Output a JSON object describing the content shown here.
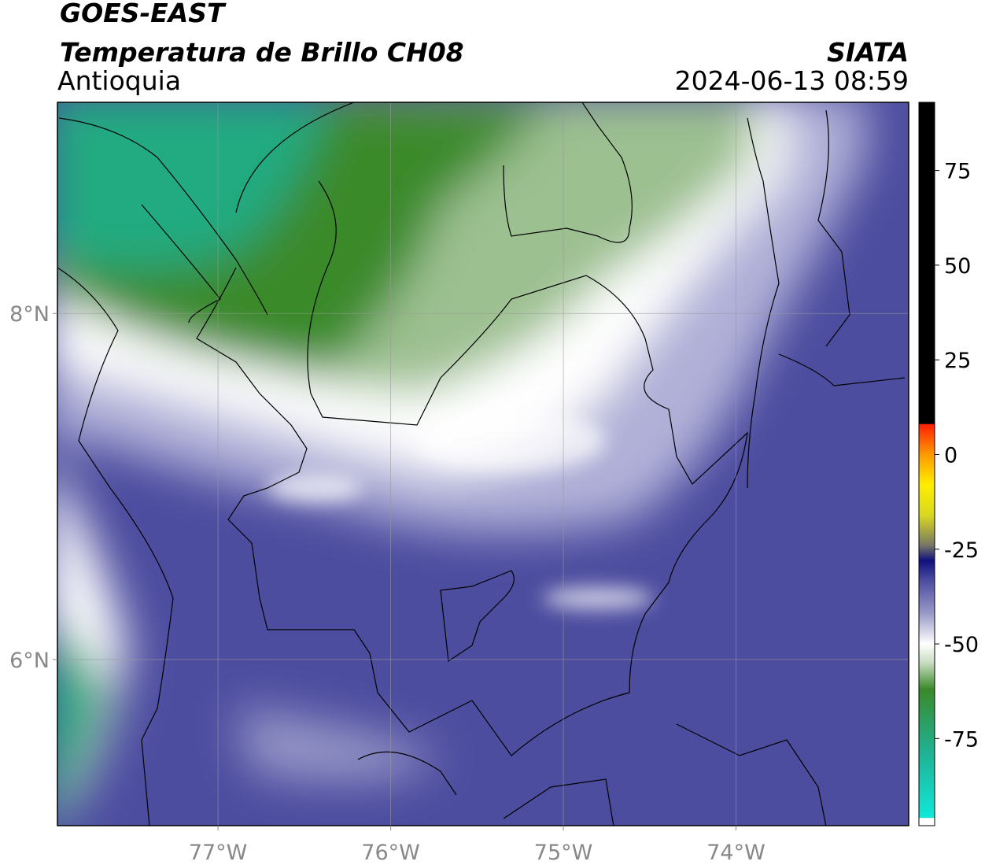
{
  "header": {
    "satellite": "GOES-EAST",
    "product": "Temperatura de Brillo CH08",
    "region": "Antioquia",
    "agency": "SIATA",
    "datetime": "2024-06-13 08:59"
  },
  "map": {
    "lonlim": [
      -77.93,
      -73.0
    ],
    "latlim": [
      5.04,
      9.22
    ],
    "lon_ticks": [
      {
        "value": -77,
        "label": "77°W"
      },
      {
        "value": -76,
        "label": "76°W"
      },
      {
        "value": -75,
        "label": "75°W"
      },
      {
        "value": -74,
        "label": "74°W"
      }
    ],
    "lat_ticks": [
      {
        "value": 8,
        "label": "8°N"
      },
      {
        "value": 6,
        "label": "6°N"
      }
    ],
    "grid": true
  },
  "colorbar": {
    "lim": [
      -98,
      93
    ],
    "ticks": [
      75,
      50,
      25,
      0,
      -25,
      -50,
      -75
    ],
    "colors": [
      {
        "value": -98,
        "color": "#ffffff"
      },
      {
        "value": -96,
        "color": "#ffffff"
      },
      {
        "value": -95.9,
        "color": "#10e8d8"
      },
      {
        "value": -78,
        "color": "#20b090"
      },
      {
        "value": -62,
        "color": "#3a8a2a"
      },
      {
        "value": -55,
        "color": "#c8dcc0"
      },
      {
        "value": -50,
        "color": "#ffffff"
      },
      {
        "value": -42,
        "color": "#9a9ac8"
      },
      {
        "value": -33,
        "color": "#4a4aa0"
      },
      {
        "value": -28,
        "color": "#101080"
      },
      {
        "value": -24,
        "color": "#777766"
      },
      {
        "value": -16,
        "color": "#d8d820"
      },
      {
        "value": -8,
        "color": "#ffee00"
      },
      {
        "value": 0,
        "color": "#ff9900"
      },
      {
        "value": 8,
        "color": "#ff2000"
      },
      {
        "value": 8.1,
        "color": "#000000"
      },
      {
        "value": 93,
        "color": "#000000"
      }
    ]
  }
}
